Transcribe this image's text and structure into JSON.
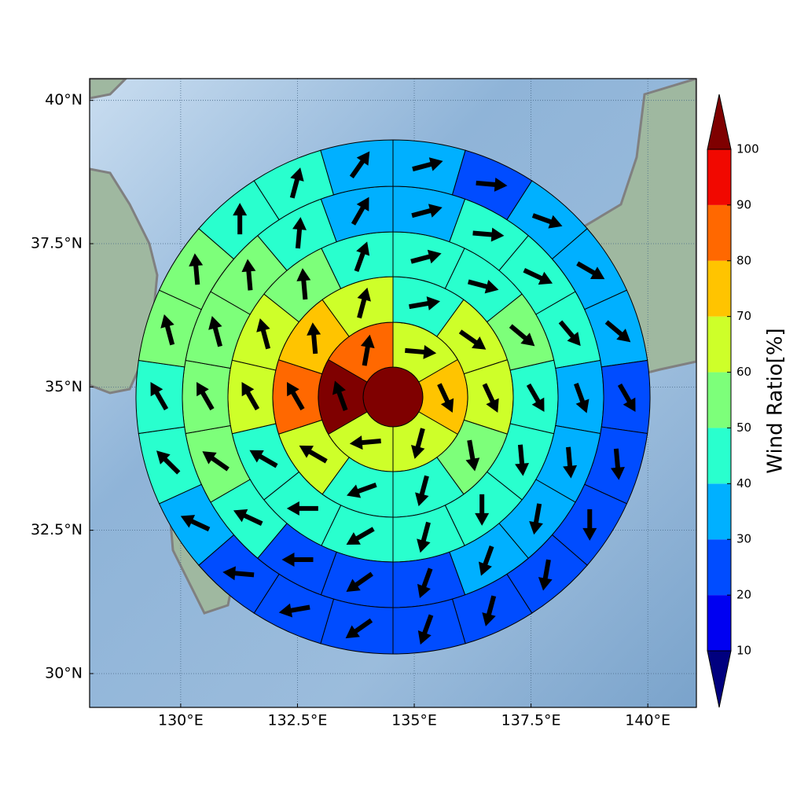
{
  "chart_data": {
    "type": "polar",
    "xlim": [
      128.05,
      141.04
    ],
    "ylim": [
      29.41,
      40.38
    ],
    "xticks": [
      {
        "value": 130,
        "label": "130°E"
      },
      {
        "value": 132.5,
        "label": "132.5°E"
      },
      {
        "value": 135,
        "label": "135°E"
      },
      {
        "value": 137.5,
        "label": "137.5°E"
      },
      {
        "value": 140,
        "label": "140°E"
      }
    ],
    "yticks": [
      {
        "value": 30,
        "label": "30°N"
      },
      {
        "value": 32.5,
        "label": "32.5°N"
      },
      {
        "value": 35,
        "label": "35°N"
      },
      {
        "value": 37.5,
        "label": "37.5°N"
      },
      {
        "value": 40,
        "label": "40°N"
      }
    ],
    "grid": true,
    "colorbar": {
      "label": "Wind Ratio[%]",
      "lim": [
        10,
        100
      ],
      "ticks": [
        10,
        20,
        30,
        40,
        50,
        60,
        70,
        80,
        90,
        100
      ],
      "colors": [
        "#0000f1",
        "#004cff",
        "#00b0ff",
        "#29ffce",
        "#7dff7a",
        "#ceff29",
        "#ffc400",
        "#ff6800",
        "#f10800"
      ],
      "under_color": "#00007f",
      "over_color": "#7f0000"
    },
    "center_value": 105,
    "rings": [
      {
        "values": [
          65,
          75,
          65,
          65,
          105,
          85
        ],
        "directions": [
          95,
          155,
          195,
          265,
          340,
          10
        ]
      },
      {
        "values": [
          45,
          65,
          65,
          55,
          45,
          45,
          65,
          85,
          75,
          65
        ],
        "directions": [
          80,
          125,
          155,
          170,
          195,
          250,
          300,
          330,
          355,
          15
        ]
      },
      {
        "values": [
          45,
          45,
          55,
          45,
          45,
          45,
          45,
          45,
          45,
          45,
          65,
          65,
          55,
          45
        ],
        "directions": [
          75,
          105,
          130,
          150,
          175,
          180,
          195,
          240,
          270,
          300,
          330,
          345,
          355,
          20
        ]
      },
      {
        "values": [
          35,
          45,
          45,
          45,
          35,
          35,
          35,
          35,
          25,
          25,
          25,
          45,
          55,
          55,
          55,
          55,
          45,
          35
        ],
        "directions": [
          75,
          95,
          115,
          140,
          160,
          175,
          190,
          200,
          200,
          235,
          270,
          295,
          305,
          330,
          345,
          355,
          5,
          30
        ]
      },
      {
        "values": [
          35,
          25,
          35,
          35,
          35,
          25,
          25,
          25,
          25,
          25,
          25,
          25,
          25,
          25,
          35,
          45,
          45,
          55,
          55,
          45,
          45,
          35
        ],
        "directions": [
          75,
          95,
          110,
          120,
          130,
          150,
          175,
          180,
          190,
          195,
          200,
          235,
          260,
          275,
          295,
          315,
          330,
          345,
          355,
          0,
          15,
          35
        ]
      }
    ]
  }
}
